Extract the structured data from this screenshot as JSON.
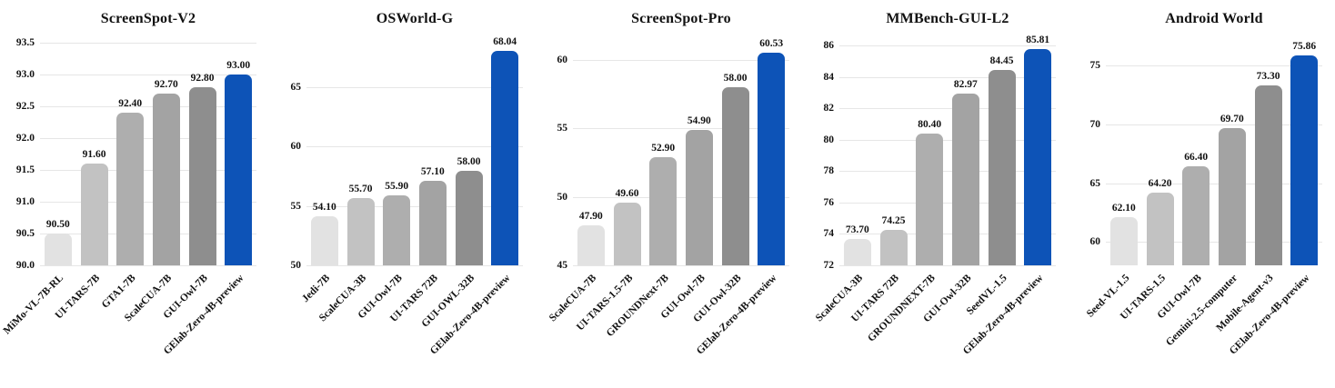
{
  "figure": {
    "background": "#ffffff",
    "description": "Five grouped benchmark bar charts comparing GUI agent models"
  },
  "style": {
    "bar_gray_ramp": [
      "#e2e2e2",
      "#c2c2c2",
      "#aeaeae",
      "#a3a3a3",
      "#8e8e8e"
    ],
    "highlight_color": "#0d53b7",
    "gridline_color": "#e6e6e6",
    "text_color": "#111111"
  },
  "chart_data": [
    {
      "type": "bar",
      "title": "ScreenSpot-V2",
      "categories": [
        "MiMo-VL-7B-RL",
        "UI-TARS-7B",
        "GTA1-7B",
        "ScaleCUA-7B",
        "GUI-Owl-7B",
        "GElab-Zero-4B-preview"
      ],
      "values": [
        90.5,
        91.6,
        92.4,
        92.7,
        92.8,
        93.0
      ],
      "value_labels": [
        "90.50",
        "91.60",
        "92.40",
        "92.70",
        "92.80",
        "93.00"
      ],
      "yticks": [
        90.0,
        90.5,
        91.0,
        91.5,
        92.0,
        92.5,
        93.0,
        93.5
      ],
      "ytick_labels": [
        "90.0",
        "90.5",
        "91.0",
        "91.5",
        "92.0",
        "92.5",
        "93.0",
        "93.5"
      ],
      "ylim": [
        90.0,
        93.6
      ],
      "grid": true,
      "legend": "none",
      "highlight_index": 5
    },
    {
      "type": "bar",
      "title": "OSWorld-G",
      "categories": [
        "Jedi-7B",
        "ScaleCUA-3B",
        "GUI-Owl-7B",
        "UI-TARS 72B",
        "GUI-OWL-32B",
        "GElab-Zero-4B-preview"
      ],
      "values": [
        54.1,
        55.7,
        55.9,
        57.1,
        58.0,
        68.04
      ],
      "value_labels": [
        "54.10",
        "55.70",
        "55.90",
        "57.10",
        "58.00",
        "68.04"
      ],
      "yticks": [
        50,
        55,
        60,
        65
      ],
      "ytick_labels": [
        "50",
        "55",
        "60",
        "65"
      ],
      "ylim": [
        50.0,
        69.3
      ],
      "grid": true,
      "legend": "none",
      "highlight_index": 5
    },
    {
      "type": "bar",
      "title": "ScreenSpot-Pro",
      "categories": [
        "ScaleCUA-7B",
        "UI-TARS-1.5-7B",
        "GROUNDNext-7B",
        "GUI-Owl-7B",
        "GUI-Owl-32B",
        "GElab-Zero-4B-preview"
      ],
      "values": [
        47.9,
        49.6,
        52.9,
        54.9,
        58.0,
        60.53
      ],
      "value_labels": [
        "47.90",
        "49.60",
        "52.90",
        "54.90",
        "58.00",
        "60.53"
      ],
      "yticks": [
        45,
        50,
        55,
        60
      ],
      "ytick_labels": [
        "45",
        "50",
        "55",
        "60"
      ],
      "ylim": [
        45.0,
        61.7
      ],
      "grid": true,
      "legend": "none",
      "highlight_index": 5
    },
    {
      "type": "bar",
      "title": "MMBench-GUI-L2",
      "categories": [
        "ScaleCUA-3B",
        "UI-TARS 72B",
        "GROUNDNEXT-7B",
        "GUI-Owl-32B",
        "SeedVL-1.5",
        "GElab-Zero-4B-preview"
      ],
      "values": [
        73.7,
        74.25,
        80.4,
        82.97,
        84.45,
        85.81
      ],
      "value_labels": [
        "73.70",
        "74.25",
        "80.40",
        "82.97",
        "84.45",
        "85.81"
      ],
      "yticks": [
        72,
        74,
        76,
        78,
        80,
        82,
        84,
        86
      ],
      "ytick_labels": [
        "72",
        "74",
        "76",
        "78",
        "80",
        "82",
        "84",
        "86"
      ],
      "ylim": [
        72.0,
        86.6
      ],
      "grid": true,
      "legend": "none",
      "highlight_index": 5
    },
    {
      "type": "bar",
      "title": "Android World",
      "categories": [
        "Seed-VL-1.5",
        "UI-TARS-1.5",
        "GUI-Owl-7B",
        "Gemini-2.5-computer",
        "Mobile-Agent-v3",
        "GElab-Zero-4B-preview"
      ],
      "values": [
        62.1,
        64.2,
        66.4,
        69.7,
        73.3,
        75.86
      ],
      "value_labels": [
        "62.10",
        "64.20",
        "66.40",
        "69.70",
        "73.30",
        "75.86"
      ],
      "yticks": [
        60,
        65,
        70,
        75
      ],
      "ytick_labels": [
        "60",
        "65",
        "70",
        "75"
      ],
      "ylim": [
        58.0,
        77.5
      ],
      "grid": true,
      "legend": "none",
      "highlight_index": 5
    }
  ]
}
